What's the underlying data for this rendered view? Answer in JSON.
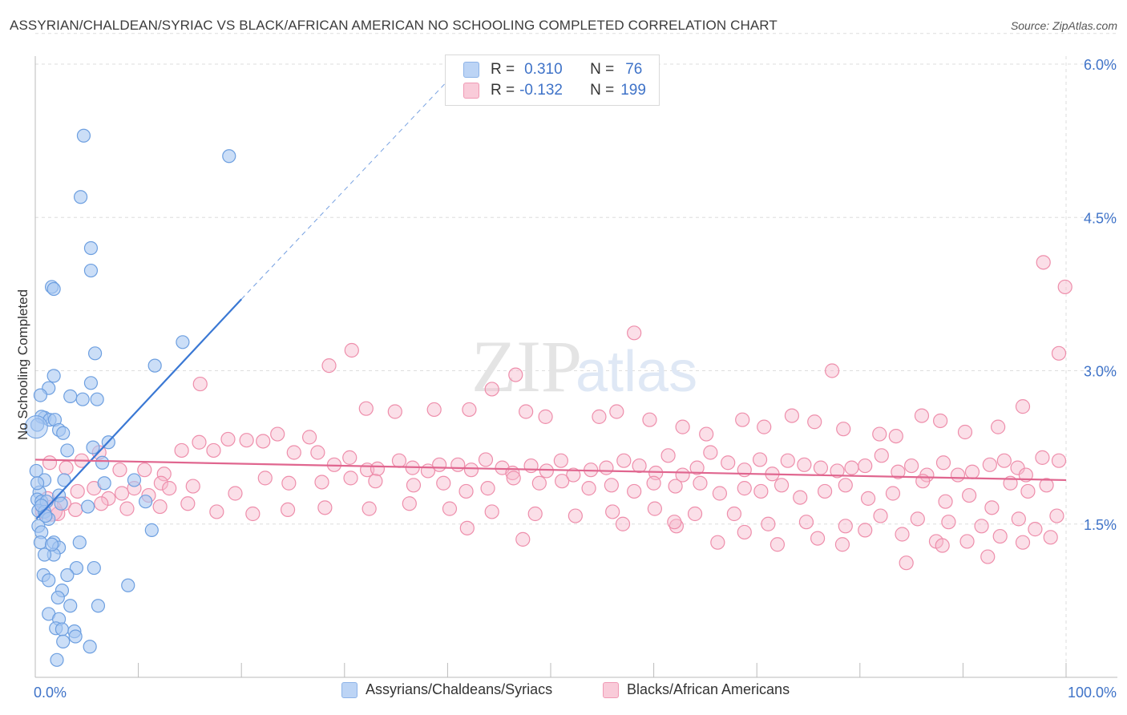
{
  "title": "ASSYRIAN/CHALDEAN/SYRIAC VS BLACK/AFRICAN AMERICAN NO SCHOOLING COMPLETED CORRELATION CHART",
  "source": "Source: ZipAtlas.com",
  "watermark": {
    "zip": "ZIP",
    "atlas": "atlas"
  },
  "legend_top": {
    "rows": [
      {
        "r_label": "R =",
        "r_value": "0.310",
        "n_label": "N =",
        "n_value": "76",
        "color": "#a9c8f2"
      },
      {
        "r_label": "R =",
        "r_value": "-0.132",
        "n_label": "N =",
        "n_value": "199",
        "color": "#f6b8cb"
      }
    ]
  },
  "legend_bottom": [
    {
      "label": "Assyrians/Chaldeans/Syriacs",
      "color": "#a9c8f2"
    },
    {
      "label": "Blacks/African Americans",
      "color": "#f6b8cb"
    }
  ],
  "chart_data": {
    "type": "scatter",
    "title": "ASSYRIAN/CHALDEAN/SYRIAC VS BLACK/AFRICAN AMERICAN NO SCHOOLING COMPLETED CORRELATION CHART",
    "xlabel": "",
    "ylabel": "No Schooling Completed",
    "xlim": [
      0,
      100
    ],
    "ylim": [
      0,
      6.3
    ],
    "x_tick_labels": [
      "0.0%",
      "100.0%"
    ],
    "y_ticks": [
      1.5,
      3.0,
      4.5,
      6.0
    ],
    "y_tick_labels": [
      "1.5%",
      "3.0%",
      "4.5%",
      "6.0%"
    ],
    "grid": true,
    "legend_position": "top-center",
    "colors": {
      "blue_fill": "#a9c8f2",
      "blue_stroke": "#6d9fe0",
      "blue_line": "#3a78d4",
      "pink_fill": "#f6b8cb",
      "pink_stroke": "#ee8eab",
      "pink_line": "#e0668f",
      "tick_label": "#3f73c8",
      "grid": "#dddddd"
    },
    "series": [
      {
        "name": "Assyrians/Chaldeans/Syriacs",
        "r": 0.31,
        "n": 76,
        "trend": {
          "x0": 0.1,
          "y0": 1.55,
          "x1": 20,
          "y1": 3.7,
          "x_dash_end": 42,
          "y_dash_end": 6.05
        },
        "points": [
          [
            4.7,
            5.3
          ],
          [
            18.8,
            5.1
          ],
          [
            4.4,
            4.7
          ],
          [
            5.4,
            4.2
          ],
          [
            5.4,
            3.98
          ],
          [
            1.6,
            3.82
          ],
          [
            1.8,
            3.8
          ],
          [
            5.8,
            3.17
          ],
          [
            11.6,
            3.05
          ],
          [
            14.3,
            3.28
          ],
          [
            1.8,
            2.95
          ],
          [
            1.3,
            2.83
          ],
          [
            0.5,
            2.76
          ],
          [
            3.4,
            2.75
          ],
          [
            4.6,
            2.72
          ],
          [
            5.4,
            2.88
          ],
          [
            6.0,
            2.72
          ],
          [
            0.9,
            2.54
          ],
          [
            0.6,
            2.55
          ],
          [
            1.4,
            2.52
          ],
          [
            1.9,
            2.52
          ],
          [
            2.3,
            2.42
          ],
          [
            2.7,
            2.39
          ],
          [
            0.2,
            2.47
          ],
          [
            3.1,
            2.22
          ],
          [
            5.6,
            2.25
          ],
          [
            7.1,
            2.3
          ],
          [
            6.5,
            2.1
          ],
          [
            0.1,
            2.02
          ],
          [
            0.9,
            1.93
          ],
          [
            2.8,
            1.93
          ],
          [
            6.7,
            1.9
          ],
          [
            9.6,
            1.93
          ],
          [
            0.4,
            1.81
          ],
          [
            2.3,
            1.78
          ],
          [
            0.2,
            1.74
          ],
          [
            0.6,
            1.72
          ],
          [
            1.1,
            1.72
          ],
          [
            2.5,
            1.7
          ],
          [
            5.1,
            1.67
          ],
          [
            10.7,
            1.72
          ],
          [
            0.3,
            1.63
          ],
          [
            0.9,
            1.62
          ],
          [
            1.3,
            1.55
          ],
          [
            0.3,
            1.48
          ],
          [
            0.6,
            1.42
          ],
          [
            11.3,
            1.44
          ],
          [
            1.8,
            1.32
          ],
          [
            2.3,
            1.27
          ],
          [
            4.3,
            1.32
          ],
          [
            0.5,
            1.32
          ],
          [
            1.8,
            1.2
          ],
          [
            0.9,
            1.2
          ],
          [
            4.0,
            1.07
          ],
          [
            5.7,
            1.07
          ],
          [
            3.1,
            1.0
          ],
          [
            0.8,
            1.0
          ],
          [
            1.3,
            0.95
          ],
          [
            9.0,
            0.9
          ],
          [
            2.6,
            0.85
          ],
          [
            2.2,
            0.78
          ],
          [
            3.4,
            0.7
          ],
          [
            6.1,
            0.7
          ],
          [
            1.3,
            0.62
          ],
          [
            2.3,
            0.57
          ],
          [
            2.0,
            0.48
          ],
          [
            2.6,
            0.47
          ],
          [
            3.8,
            0.45
          ],
          [
            2.7,
            0.35
          ],
          [
            3.9,
            0.4
          ],
          [
            5.3,
            0.3
          ],
          [
            2.1,
            0.17
          ],
          [
            0.6,
            1.68
          ],
          [
            1.6,
            1.3
          ],
          [
            0.2,
            1.9
          ],
          [
            1.0,
            1.58
          ]
        ]
      },
      {
        "name": "Blacks/African Americans",
        "r": -0.132,
        "n": 199,
        "trend": {
          "x0": 0,
          "y0": 2.13,
          "x1": 100,
          "y1": 1.93
        },
        "points": [
          [
            97.8,
            4.06
          ],
          [
            99.9,
            3.82
          ],
          [
            99.3,
            3.17
          ],
          [
            95.8,
            2.65
          ],
          [
            58.1,
            3.37
          ],
          [
            30.7,
            3.2
          ],
          [
            28.5,
            3.05
          ],
          [
            77.3,
            3.0
          ],
          [
            16.0,
            2.87
          ],
          [
            46.6,
            2.96
          ],
          [
            32.1,
            2.63
          ],
          [
            34.9,
            2.6
          ],
          [
            38.7,
            2.62
          ],
          [
            42.1,
            2.62
          ],
          [
            44.3,
            2.82
          ],
          [
            47.6,
            2.6
          ],
          [
            49.5,
            2.55
          ],
          [
            54.7,
            2.55
          ],
          [
            56.4,
            2.6
          ],
          [
            59.6,
            2.52
          ],
          [
            62.8,
            2.45
          ],
          [
            65.1,
            2.38
          ],
          [
            68.6,
            2.52
          ],
          [
            70.7,
            2.45
          ],
          [
            73.4,
            2.56
          ],
          [
            75.6,
            2.5
          ],
          [
            78.4,
            2.43
          ],
          [
            81.9,
            2.38
          ],
          [
            83.5,
            2.36
          ],
          [
            86.0,
            2.56
          ],
          [
            87.8,
            2.51
          ],
          [
            90.2,
            2.4
          ],
          [
            93.4,
            2.45
          ],
          [
            97.7,
            2.15
          ],
          [
            99.3,
            2.12
          ],
          [
            1.4,
            2.1
          ],
          [
            3.0,
            2.05
          ],
          [
            4.5,
            2.12
          ],
          [
            6.2,
            2.2
          ],
          [
            8.2,
            2.03
          ],
          [
            10.6,
            2.03
          ],
          [
            12.5,
            1.99
          ],
          [
            14.2,
            2.22
          ],
          [
            15.9,
            2.3
          ],
          [
            17.3,
            2.22
          ],
          [
            18.7,
            2.33
          ],
          [
            20.5,
            2.32
          ],
          [
            22.1,
            2.31
          ],
          [
            23.5,
            2.38
          ],
          [
            25.1,
            2.2
          ],
          [
            26.6,
            2.35
          ],
          [
            27.4,
            2.2
          ],
          [
            29.0,
            2.08
          ],
          [
            30.5,
            2.15
          ],
          [
            32.2,
            2.03
          ],
          [
            33.2,
            2.04
          ],
          [
            35.3,
            2.12
          ],
          [
            36.6,
            2.05
          ],
          [
            38.1,
            2.02
          ],
          [
            39.2,
            2.08
          ],
          [
            41.0,
            2.08
          ],
          [
            42.3,
            2.03
          ],
          [
            43.7,
            2.13
          ],
          [
            45.3,
            2.05
          ],
          [
            46.3,
            2.0
          ],
          [
            48.1,
            2.07
          ],
          [
            49.6,
            2.02
          ],
          [
            51.0,
            2.12
          ],
          [
            52.2,
            1.98
          ],
          [
            53.9,
            2.03
          ],
          [
            55.4,
            2.05
          ],
          [
            57.1,
            2.12
          ],
          [
            58.6,
            2.07
          ],
          [
            60.2,
            2.0
          ],
          [
            61.4,
            2.17
          ],
          [
            62.8,
            1.98
          ],
          [
            64.2,
            2.05
          ],
          [
            65.5,
            2.2
          ],
          [
            67.2,
            2.1
          ],
          [
            68.8,
            2.03
          ],
          [
            70.3,
            2.13
          ],
          [
            71.5,
            1.99
          ],
          [
            73.0,
            2.12
          ],
          [
            74.6,
            2.08
          ],
          [
            76.2,
            2.05
          ],
          [
            77.8,
            2.02
          ],
          [
            79.2,
            2.05
          ],
          [
            80.5,
            2.07
          ],
          [
            82.1,
            2.17
          ],
          [
            83.7,
            2.01
          ],
          [
            85.0,
            2.07
          ],
          [
            86.5,
            1.98
          ],
          [
            88.1,
            2.1
          ],
          [
            89.5,
            1.98
          ],
          [
            90.9,
            2.01
          ],
          [
            92.6,
            2.08
          ],
          [
            94.0,
            2.12
          ],
          [
            95.3,
            2.05
          ],
          [
            96.1,
            1.98
          ],
          [
            1.2,
            1.75
          ],
          [
            2.8,
            1.7
          ],
          [
            4.1,
            1.82
          ],
          [
            5.7,
            1.85
          ],
          [
            7.1,
            1.75
          ],
          [
            8.4,
            1.8
          ],
          [
            9.6,
            1.85
          ],
          [
            11.0,
            1.78
          ],
          [
            12.2,
            1.9
          ],
          [
            13.0,
            1.85
          ],
          [
            15.3,
            1.87
          ],
          [
            19.4,
            1.8
          ],
          [
            22.3,
            1.95
          ],
          [
            24.6,
            1.9
          ],
          [
            27.8,
            1.91
          ],
          [
            30.6,
            1.95
          ],
          [
            33.0,
            1.92
          ],
          [
            36.7,
            1.88
          ],
          [
            39.6,
            1.9
          ],
          [
            41.8,
            1.82
          ],
          [
            43.9,
            1.85
          ],
          [
            46.4,
            1.95
          ],
          [
            48.9,
            1.9
          ],
          [
            51.1,
            1.92
          ],
          [
            53.7,
            1.85
          ],
          [
            55.9,
            1.88
          ],
          [
            58.1,
            1.82
          ],
          [
            60.0,
            1.9
          ],
          [
            62.1,
            1.87
          ],
          [
            64.5,
            1.9
          ],
          [
            66.4,
            1.8
          ],
          [
            68.8,
            1.85
          ],
          [
            70.4,
            1.82
          ],
          [
            72.4,
            1.88
          ],
          [
            74.2,
            1.76
          ],
          [
            76.6,
            1.82
          ],
          [
            78.6,
            1.88
          ],
          [
            80.8,
            1.75
          ],
          [
            83.2,
            1.8
          ],
          [
            86.1,
            1.92
          ],
          [
            88.3,
            1.72
          ],
          [
            90.6,
            1.78
          ],
          [
            92.8,
            1.66
          ],
          [
            94.6,
            1.9
          ],
          [
            96.3,
            1.82
          ],
          [
            98.1,
            1.88
          ],
          [
            0.7,
            1.62
          ],
          [
            2.2,
            1.6
          ],
          [
            3.9,
            1.64
          ],
          [
            6.4,
            1.7
          ],
          [
            8.9,
            1.65
          ],
          [
            12.1,
            1.67
          ],
          [
            14.8,
            1.7
          ],
          [
            17.6,
            1.62
          ],
          [
            21.1,
            1.6
          ],
          [
            24.5,
            1.64
          ],
          [
            28.1,
            1.66
          ],
          [
            32.4,
            1.65
          ],
          [
            36.3,
            1.7
          ],
          [
            40.2,
            1.65
          ],
          [
            44.3,
            1.62
          ],
          [
            48.5,
            1.6
          ],
          [
            52.4,
            1.58
          ],
          [
            56.0,
            1.62
          ],
          [
            60.1,
            1.65
          ],
          [
            64.0,
            1.6
          ],
          [
            67.8,
            1.6
          ],
          [
            71.1,
            1.5
          ],
          [
            74.8,
            1.52
          ],
          [
            78.6,
            1.48
          ],
          [
            82.0,
            1.58
          ],
          [
            85.6,
            1.55
          ],
          [
            88.6,
            1.52
          ],
          [
            91.8,
            1.48
          ],
          [
            95.4,
            1.55
          ],
          [
            99.1,
            1.58
          ],
          [
            41.9,
            1.46
          ],
          [
            47.3,
            1.35
          ],
          [
            57.0,
            1.5
          ],
          [
            62.2,
            1.48
          ],
          [
            68.8,
            1.42
          ],
          [
            75.9,
            1.36
          ],
          [
            80.5,
            1.44
          ],
          [
            84.1,
            1.4
          ],
          [
            87.4,
            1.33
          ],
          [
            90.4,
            1.33
          ],
          [
            93.6,
            1.38
          ],
          [
            97.0,
            1.45
          ],
          [
            62.0,
            1.52
          ],
          [
            72.0,
            1.3
          ],
          [
            84.5,
            1.12
          ],
          [
            92.4,
            1.18
          ],
          [
            98.5,
            1.37
          ],
          [
            88.0,
            1.29
          ],
          [
            95.8,
            1.32
          ],
          [
            78.3,
            1.3
          ],
          [
            66.2,
            1.32
          ]
        ]
      }
    ]
  }
}
